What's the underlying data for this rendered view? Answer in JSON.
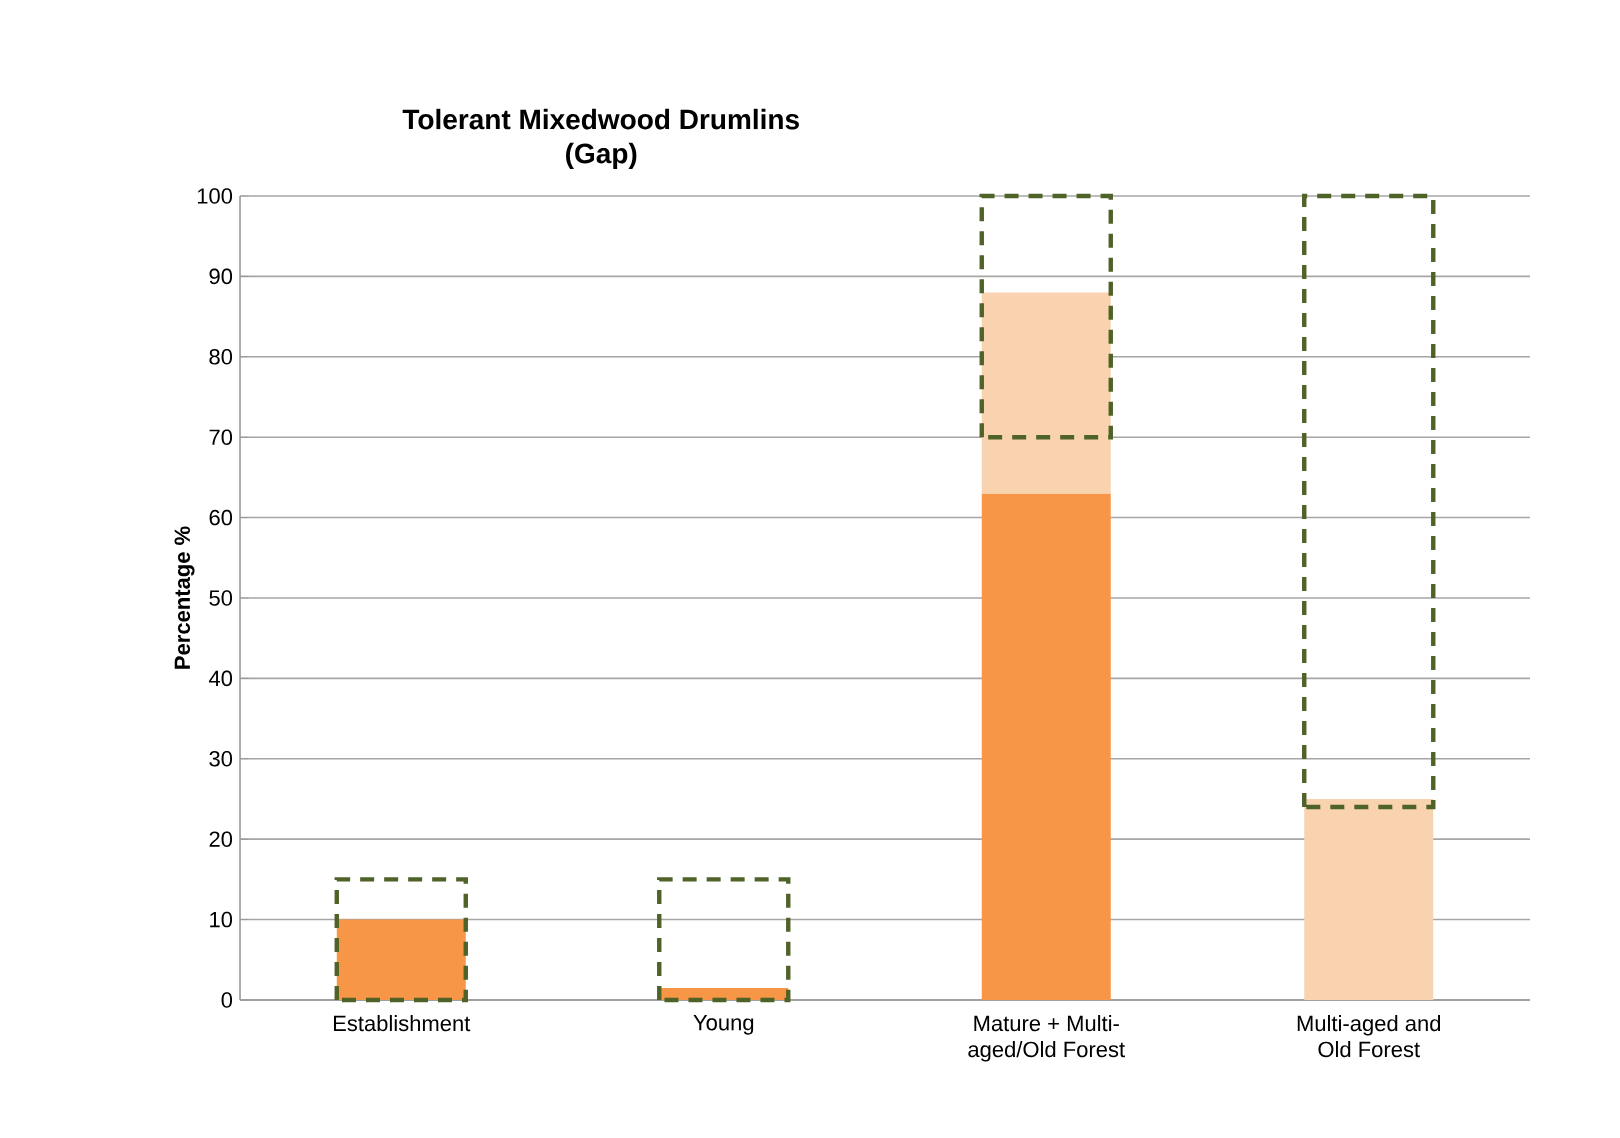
{
  "chart_data": {
    "type": "bar",
    "title": "Tolerant Mixedwood Drumlins\n(Gap)",
    "ylabel": "Percentage %",
    "categories": [
      "Establishment",
      "Young",
      "Mature + Multi-\naged/Old Forest",
      "Multi-aged and\nOld Forest"
    ],
    "ylim": [
      0,
      100
    ],
    "yticks": [
      0,
      10,
      20,
      30,
      40,
      50,
      60,
      70,
      80,
      90,
      100
    ],
    "grid": "y",
    "series": [
      {
        "color": "#f79646",
        "values": [
          10,
          1.5,
          63,
          0
        ]
      },
      {
        "color": "#f9d3b0",
        "base": [
          null,
          null,
          63,
          0
        ],
        "values": [
          null,
          null,
          25,
          25
        ]
      },
      {
        "type": "bar",
        "color": "#4f6228",
        "line_style": "dashed",
        "base": [
          0,
          0,
          70,
          24
        ],
        "values": [
          15,
          15,
          30,
          76
        ]
      }
    ]
  }
}
